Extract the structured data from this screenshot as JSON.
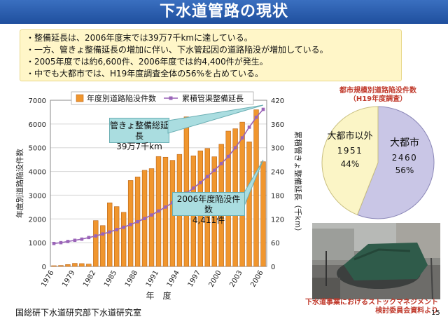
{
  "title": "下水道管路の現状",
  "summary": [
    "・整備延長は、2006年度末では39万7千kmに達している。",
    "・一方、管きょ整備延長の増加に伴い、下水管起因の道路陥没が増加している。",
    "・2005年度では約6,600件、2006年度では約4,400件が発生。",
    "・中でも大都市では、H19年度調査全体の56%を占めている。"
  ],
  "colors": {
    "title_bg": "#2a5fb0",
    "bar": "#f0962e",
    "line": "#9a64b8",
    "callout": "#aadde0",
    "pie_big": "#c9c6e6",
    "pie_small": "#fbf5c6",
    "caption": "#c0392b"
  },
  "chart_data": {
    "type": "bar+line",
    "title": "",
    "xlabel": "年　度",
    "ylabel_left": "年度別道路陥没件数",
    "ylabel_right": "累積管きょ整備延長（千km）",
    "ylim_left": [
      0,
      7000
    ],
    "ylim_right": [
      0,
      420
    ],
    "yticks_left": [
      "0",
      "1000",
      "2000",
      "3000",
      "4000",
      "5000",
      "6000",
      "7000"
    ],
    "yticks_right": [
      "0",
      "60",
      "120",
      "180",
      "240",
      "300",
      "360",
      "420"
    ],
    "xtick_labels": [
      "1976",
      "1979",
      "1982",
      "1985",
      "1988",
      "1991",
      "1994",
      "1997",
      "2000",
      "2003",
      "2006"
    ],
    "legend": [
      "年度別道路陥没件数",
      "累積管渠整備延長"
    ],
    "years": [
      1976,
      1977,
      1978,
      1979,
      1980,
      1981,
      1982,
      1983,
      1984,
      1985,
      1986,
      1987,
      1988,
      1989,
      1990,
      1991,
      1992,
      1993,
      1994,
      1995,
      1996,
      1997,
      1998,
      1999,
      2000,
      2001,
      2002,
      2003,
      2004,
      2005,
      2006
    ],
    "series": [
      {
        "name": "年度別道路陥没件数",
        "axis": "left",
        "values": [
          30,
          40,
          80,
          130,
          120,
          100,
          1930,
          1720,
          2680,
          2520,
          2280,
          3620,
          3770,
          4050,
          4120,
          4630,
          4600,
          4470,
          4720,
          6300,
          4660,
          4870,
          4970,
          4620,
          5150,
          5700,
          5800,
          6080,
          5250,
          6600,
          4411
        ]
      },
      {
        "name": "累積管渠整備延長",
        "axis": "right",
        "values": [
          58,
          60,
          63,
          66,
          69,
          73,
          77,
          82,
          87,
          93,
          99,
          106,
          113,
          121,
          130,
          140,
          150,
          161,
          172,
          185,
          198,
          212,
          227,
          243,
          260,
          278,
          300,
          325,
          352,
          377,
          397
        ]
      }
    ],
    "annotations": [
      {
        "text": [
          "管きょ整備総延長",
          "39万7千km"
        ]
      },
      {
        "text": [
          "2006年度陥没件数",
          "4,411件"
        ]
      }
    ]
  },
  "pie": {
    "title": [
      "都市規模別道路陥没件数",
      "（H19年度調査）"
    ],
    "slices": [
      {
        "label": "大都市",
        "value": "2460",
        "percent": "56%",
        "fraction": 0.56
      },
      {
        "label": "大都市以外",
        "value": "1951",
        "percent": "44%",
        "fraction": 0.44
      }
    ]
  },
  "photo_caption": [
    "下水道事業におけるストックマネジメント",
    "検討委員会資料より"
  ],
  "footer": "国総研下水道研究部下水道研究室",
  "page_number": "15"
}
